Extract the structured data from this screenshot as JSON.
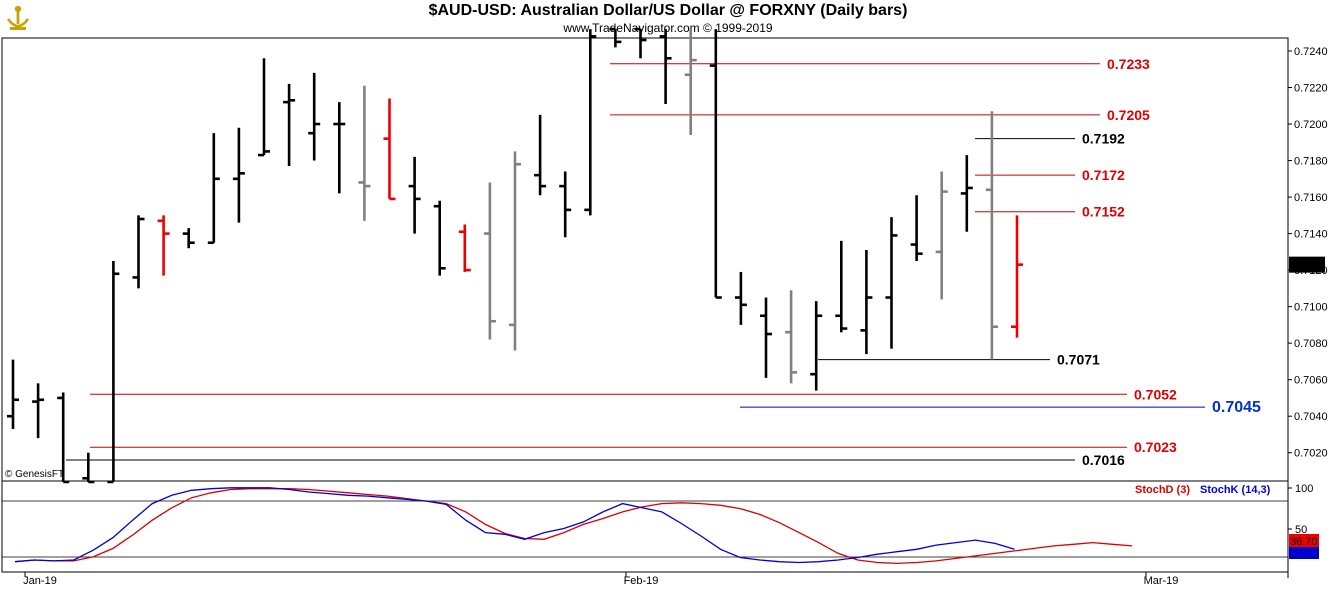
{
  "header": {
    "title": "$AUD-USD:  Australian Dollar/US Dollar @ FORXNY  (Daily bars)",
    "subtitle": "www.TradeNavigator.com © 1999-2019",
    "credit": "© GenesisFT"
  },
  "colors": {
    "up_bar": "#000000",
    "neutral_bar": "#808080",
    "down_bar": "#ee0000",
    "resistance": "#cc0000",
    "support": "#000000",
    "target": "#0000cc",
    "stoch_d": "#dd0000",
    "stoch_k": "#0000dd",
    "last_price_bg": "#000000",
    "stoch_last_bg": "#ee0000"
  },
  "chart_data": [
    {
      "type": "ohlc",
      "name": "price",
      "ylim": [
        0.7004,
        0.7248
      ],
      "y_ticks": [
        "0.7240",
        "0.7220",
        "0.7200",
        "0.7180",
        "0.7160",
        "0.7140",
        "0.7120",
        "0.7100",
        "0.7080",
        "0.7060",
        "0.7040",
        "0.7020"
      ],
      "last_price": "0.7123",
      "x_labels": [
        "Jan-19",
        "Feb-19",
        "Mar-19"
      ],
      "bars": [
        {
          "i": 0,
          "o": 0.704,
          "h": 0.7071,
          "l": 0.7033,
          "c": 0.7049,
          "color": "black"
        },
        {
          "i": 1,
          "o": 0.7048,
          "h": 0.7058,
          "l": 0.7028,
          "c": 0.7049,
          "color": "black"
        },
        {
          "i": 2,
          "o": 0.705,
          "h": 0.7053,
          "l": 0.7004,
          "c": 0.7004,
          "color": "black"
        },
        {
          "i": 3,
          "o": 0.7006,
          "h": 0.702,
          "l": 0.7004,
          "c": 0.7004,
          "color": "black"
        },
        {
          "i": 4,
          "o": 0.7004,
          "h": 0.7125,
          "l": 0.7004,
          "c": 0.7118,
          "color": "black"
        },
        {
          "i": 5,
          "o": 0.7116,
          "h": 0.715,
          "l": 0.711,
          "c": 0.7148,
          "color": "black"
        },
        {
          "i": 6,
          "o": 0.7147,
          "h": 0.715,
          "l": 0.7117,
          "c": 0.714,
          "color": "red"
        },
        {
          "i": 7,
          "o": 0.714,
          "h": 0.7143,
          "l": 0.7132,
          "c": 0.7135,
          "color": "black"
        },
        {
          "i": 8,
          "o": 0.7135,
          "h": 0.7195,
          "l": 0.7135,
          "c": 0.717,
          "color": "black"
        },
        {
          "i": 9,
          "o": 0.717,
          "h": 0.7198,
          "l": 0.7146,
          "c": 0.7173,
          "color": "black"
        },
        {
          "i": 10,
          "o": 0.7183,
          "h": 0.7236,
          "l": 0.7183,
          "c": 0.7185,
          "color": "black"
        },
        {
          "i": 11,
          "o": 0.7212,
          "h": 0.7222,
          "l": 0.7177,
          "c": 0.7213,
          "color": "black"
        },
        {
          "i": 12,
          "o": 0.7195,
          "h": 0.7228,
          "l": 0.718,
          "c": 0.72,
          "color": "black"
        },
        {
          "i": 13,
          "o": 0.72,
          "h": 0.7212,
          "l": 0.7162,
          "c": 0.72,
          "color": "black"
        },
        {
          "i": 14,
          "o": 0.7168,
          "h": 0.7221,
          "l": 0.7147,
          "c": 0.7166,
          "color": "gray"
        },
        {
          "i": 15,
          "o": 0.7192,
          "h": 0.7214,
          "l": 0.7159,
          "c": 0.7159,
          "color": "red"
        },
        {
          "i": 16,
          "o": 0.7166,
          "h": 0.7182,
          "l": 0.714,
          "c": 0.7159,
          "color": "black"
        },
        {
          "i": 17,
          "o": 0.7155,
          "h": 0.7158,
          "l": 0.7117,
          "c": 0.7121,
          "color": "black"
        },
        {
          "i": 18,
          "o": 0.7141,
          "h": 0.7145,
          "l": 0.7119,
          "c": 0.712,
          "color": "red"
        },
        {
          "i": 19,
          "o": 0.714,
          "h": 0.7168,
          "l": 0.7082,
          "c": 0.7092,
          "color": "gray"
        },
        {
          "i": 20,
          "o": 0.709,
          "h": 0.7185,
          "l": 0.7076,
          "c": 0.7178,
          "color": "gray"
        },
        {
          "i": 21,
          "o": 0.7172,
          "h": 0.7205,
          "l": 0.7161,
          "c": 0.7166,
          "color": "black"
        },
        {
          "i": 22,
          "o": 0.7166,
          "h": 0.7174,
          "l": 0.7138,
          "c": 0.7153,
          "color": "black"
        },
        {
          "i": 23,
          "o": 0.7153,
          "h": 0.7252,
          "l": 0.715,
          "c": 0.7248,
          "color": "black"
        },
        {
          "i": 24,
          "o": 0.7252,
          "h": 0.7252,
          "l": 0.7242,
          "c": 0.7245,
          "color": "black"
        },
        {
          "i": 25,
          "o": 0.7252,
          "h": 0.7252,
          "l": 0.7236,
          "c": 0.7246,
          "color": "black"
        },
        {
          "i": 26,
          "o": 0.7248,
          "h": 0.7252,
          "l": 0.7211,
          "c": 0.7236,
          "color": "black"
        },
        {
          "i": 27,
          "o": 0.7227,
          "h": 0.7252,
          "l": 0.7194,
          "c": 0.7235,
          "color": "gray"
        },
        {
          "i": 28,
          "o": 0.7232,
          "h": 0.7252,
          "l": 0.7105,
          "c": 0.7105,
          "color": "black"
        },
        {
          "i": 29,
          "o": 0.7105,
          "h": 0.7119,
          "l": 0.709,
          "c": 0.7101,
          "color": "black"
        },
        {
          "i": 30,
          "o": 0.7095,
          "h": 0.7105,
          "l": 0.7061,
          "c": 0.7085,
          "color": "black"
        },
        {
          "i": 31,
          "o": 0.7086,
          "h": 0.7109,
          "l": 0.7058,
          "c": 0.7064,
          "color": "gray"
        },
        {
          "i": 32,
          "o": 0.7063,
          "h": 0.7103,
          "l": 0.7054,
          "c": 0.7095,
          "color": "black"
        },
        {
          "i": 33,
          "o": 0.7095,
          "h": 0.7136,
          "l": 0.7086,
          "c": 0.7088,
          "color": "black"
        },
        {
          "i": 34,
          "o": 0.7087,
          "h": 0.7131,
          "l": 0.7074,
          "c": 0.7105,
          "color": "black"
        },
        {
          "i": 35,
          "o": 0.7105,
          "h": 0.7149,
          "l": 0.7077,
          "c": 0.7139,
          "color": "black"
        },
        {
          "i": 36,
          "o": 0.7134,
          "h": 0.7161,
          "l": 0.7125,
          "c": 0.7129,
          "color": "black"
        },
        {
          "i": 37,
          "o": 0.713,
          "h": 0.7174,
          "l": 0.7104,
          "c": 0.7163,
          "color": "gray"
        },
        {
          "i": 38,
          "o": 0.7162,
          "h": 0.7183,
          "l": 0.7141,
          "c": 0.7165,
          "color": "black"
        },
        {
          "i": 39,
          "o": 0.7164,
          "h": 0.7207,
          "l": 0.7071,
          "c": 0.7089,
          "color": "gray"
        },
        {
          "i": 40,
          "o": 0.7089,
          "h": 0.715,
          "l": 0.7083,
          "c": 0.7123,
          "color": "red"
        }
      ],
      "levels": [
        {
          "value": 0.7233,
          "label": "0.7233",
          "kind": "resistance"
        },
        {
          "value": 0.7205,
          "label": "0.7205",
          "kind": "resistance"
        },
        {
          "value": 0.7192,
          "label": "0.7192",
          "kind": "support"
        },
        {
          "value": 0.7172,
          "label": "0.7172",
          "kind": "resistance"
        },
        {
          "value": 0.7152,
          "label": "0.7152",
          "kind": "resistance"
        },
        {
          "value": 0.7071,
          "label": "0.7071",
          "kind": "support"
        },
        {
          "value": 0.7052,
          "label": "0.7052",
          "kind": "resistance"
        },
        {
          "value": 0.7045,
          "label": "0.7045",
          "kind": "target"
        },
        {
          "value": 0.7023,
          "label": "0.7023",
          "kind": "resistance"
        },
        {
          "value": 0.7016,
          "label": "0.7016",
          "kind": "support"
        }
      ]
    },
    {
      "type": "line",
      "name": "stochastic",
      "ylim": [
        0,
        100
      ],
      "y_ticks": [
        "100",
        "50"
      ],
      "last_value": "36.70",
      "series": [
        {
          "name": "StochD (3)",
          "color": "#dd0000",
          "values": [
            10,
            12,
            11,
            11,
            16,
            26,
            42,
            60,
            75,
            87,
            93,
            97,
            98,
            98,
            98,
            97,
            95,
            93,
            91,
            89,
            86,
            83,
            80,
            70,
            55,
            44,
            38,
            37,
            45,
            55,
            62,
            70,
            76,
            80,
            81,
            80,
            78,
            74,
            67,
            57,
            45,
            33,
            20,
            12,
            9,
            8,
            9,
            11,
            14,
            17,
            20,
            23,
            26,
            29,
            31,
            33,
            31,
            29
          ]
        },
        {
          "name": "StochK (14,3)",
          "color": "#0000dd",
          "values": [
            10,
            12,
            11,
            12,
            24,
            39,
            60,
            80,
            90,
            96,
            98,
            99,
            99,
            99,
            97,
            94,
            92,
            90,
            89,
            87,
            85,
            83,
            79,
            60,
            45,
            43,
            37,
            45,
            50,
            58,
            70,
            80,
            75,
            70,
            56,
            41,
            25,
            15,
            12,
            10,
            9,
            10,
            12,
            15,
            19,
            22,
            25,
            30,
            33,
            36,
            32,
            25
          ]
        }
      ]
    }
  ]
}
